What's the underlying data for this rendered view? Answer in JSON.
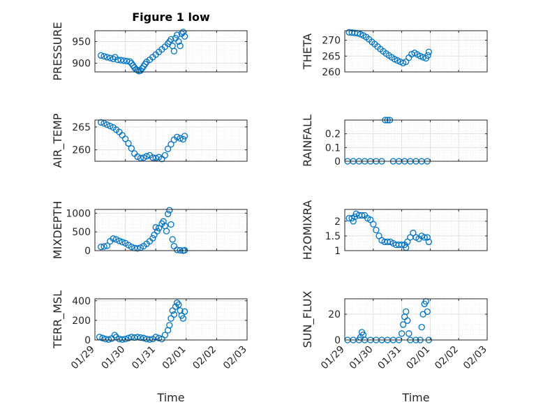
{
  "figure": {
    "title": "Figure 1 low",
    "marker_color": "#0072bd",
    "axis_color": "#262626",
    "grid_color": "#dfdfdf"
  },
  "chart_data": [
    {
      "type": "scatter",
      "id": "pressure",
      "ylabel": "PRESSURE",
      "xlabel": "",
      "xlim": [
        "01/29",
        "02/03"
      ],
      "ylim": [
        880,
        975
      ],
      "yticks": [
        900,
        950
      ],
      "xtick_labels_visible": false,
      "points": [
        [
          0.2,
          918
        ],
        [
          0.3,
          916
        ],
        [
          0.4,
          914
        ],
        [
          0.5,
          912
        ],
        [
          0.6,
          910
        ],
        [
          0.66,
          914
        ],
        [
          0.75,
          908
        ],
        [
          0.85,
          907
        ],
        [
          0.95,
          906
        ],
        [
          1.05,
          905
        ],
        [
          1.15,
          904
        ],
        [
          1.2,
          900
        ],
        [
          1.25,
          895
        ],
        [
          1.3,
          890
        ],
        [
          1.35,
          886
        ],
        [
          1.4,
          884
        ],
        [
          1.45,
          882
        ],
        [
          1.5,
          883
        ],
        [
          1.55,
          888
        ],
        [
          1.6,
          893
        ],
        [
          1.65,
          898
        ],
        [
          1.7,
          903
        ],
        [
          1.8,
          908
        ],
        [
          1.9,
          914
        ],
        [
          2.0,
          920
        ],
        [
          2.1,
          926
        ],
        [
          2.2,
          932
        ],
        [
          2.3,
          938
        ],
        [
          2.4,
          945
        ],
        [
          2.45,
          950
        ],
        [
          2.5,
          955
        ],
        [
          2.55,
          940
        ],
        [
          2.6,
          928
        ],
        [
          2.65,
          958
        ],
        [
          2.7,
          965
        ],
        [
          2.75,
          950
        ],
        [
          2.8,
          940
        ],
        [
          2.85,
          968
        ],
        [
          2.9,
          972
        ],
        [
          2.95,
          962
        ]
      ]
    },
    {
      "type": "scatter",
      "id": "theta",
      "ylabel": "THETA",
      "xlabel": "",
      "xlim": [
        "01/29",
        "02/03"
      ],
      "ylim": [
        260,
        273
      ],
      "yticks": [
        260,
        265,
        270
      ],
      "xtick_labels_visible": false,
      "points": [
        [
          0.15,
          272.5
        ],
        [
          0.25,
          272.4
        ],
        [
          0.35,
          272.3
        ],
        [
          0.45,
          272.2
        ],
        [
          0.55,
          271.9
        ],
        [
          0.65,
          271.5
        ],
        [
          0.75,
          271.0
        ],
        [
          0.85,
          270.3
        ],
        [
          0.95,
          269.5
        ],
        [
          1.05,
          268.8
        ],
        [
          1.15,
          268.0
        ],
        [
          1.25,
          267.2
        ],
        [
          1.35,
          266.5
        ],
        [
          1.45,
          265.8
        ],
        [
          1.55,
          265.2
        ],
        [
          1.65,
          264.6
        ],
        [
          1.75,
          264.0
        ],
        [
          1.85,
          263.6
        ],
        [
          1.95,
          263.2
        ],
        [
          2.05,
          262.8
        ],
        [
          2.15,
          263.2
        ],
        [
          2.25,
          264.5
        ],
        [
          2.35,
          265.6
        ],
        [
          2.45,
          266.0
        ],
        [
          2.55,
          265.5
        ],
        [
          2.65,
          265.0
        ],
        [
          2.75,
          264.6
        ],
        [
          2.85,
          264.3
        ],
        [
          2.92,
          265.2
        ],
        [
          2.95,
          266.3
        ]
      ]
    },
    {
      "type": "scatter",
      "id": "air_temp",
      "ylabel": "AIR_TEMP",
      "xlabel": "",
      "xlim": [
        "01/29",
        "02/03"
      ],
      "ylim": [
        257.5,
        266.5
      ],
      "yticks": [
        260,
        265
      ],
      "xtick_labels_visible": false,
      "points": [
        [
          0.2,
          266.0
        ],
        [
          0.3,
          265.8
        ],
        [
          0.4,
          265.5
        ],
        [
          0.5,
          265.2
        ],
        [
          0.6,
          264.9
        ],
        [
          0.7,
          264.4
        ],
        [
          0.8,
          263.9
        ],
        [
          0.9,
          263.2
        ],
        [
          1.0,
          262.4
        ],
        [
          1.1,
          261.4
        ],
        [
          1.2,
          260.3
        ],
        [
          1.3,
          259.2
        ],
        [
          1.4,
          258.5
        ],
        [
          1.5,
          258.2
        ],
        [
          1.6,
          258.3
        ],
        [
          1.7,
          258.6
        ],
        [
          1.8,
          258.8
        ],
        [
          1.9,
          258.3
        ],
        [
          2.0,
          258.2
        ],
        [
          2.1,
          258.4
        ],
        [
          2.2,
          258.0
        ],
        [
          2.3,
          258.8
        ],
        [
          2.4,
          260.2
        ],
        [
          2.5,
          261.2
        ],
        [
          2.6,
          262.2
        ],
        [
          2.7,
          262.8
        ],
        [
          2.8,
          262.5
        ],
        [
          2.9,
          262.3
        ],
        [
          2.95,
          263.0
        ]
      ]
    },
    {
      "type": "scatter",
      "id": "rainfall",
      "ylabel": "RAINFALL",
      "xlabel": "",
      "xlim": [
        "01/29",
        "02/03"
      ],
      "ylim": [
        0,
        0.3
      ],
      "yticks": [
        0,
        0.1,
        0.2
      ],
      "xtick_labels_visible": false,
      "points": [
        [
          0.1,
          0
        ],
        [
          0.3,
          0
        ],
        [
          0.5,
          0
        ],
        [
          0.7,
          0
        ],
        [
          0.9,
          0
        ],
        [
          1.1,
          0
        ],
        [
          1.3,
          0
        ],
        [
          1.42,
          0.3
        ],
        [
          1.5,
          0.3
        ],
        [
          1.58,
          0.3
        ],
        [
          1.7,
          0
        ],
        [
          1.9,
          0
        ],
        [
          2.1,
          0
        ],
        [
          2.3,
          0
        ],
        [
          2.5,
          0
        ],
        [
          2.7,
          0
        ],
        [
          2.9,
          0
        ]
      ]
    },
    {
      "type": "scatter",
      "id": "mixdepth",
      "ylabel": "MIXDEPTH",
      "xlabel": "",
      "xlim": [
        "01/29",
        "02/03"
      ],
      "ylim": [
        0,
        1100
      ],
      "yticks": [
        0,
        500,
        1000
      ],
      "xtick_labels_visible": false,
      "points": [
        [
          0.2,
          100
        ],
        [
          0.3,
          110
        ],
        [
          0.4,
          130
        ],
        [
          0.5,
          250
        ],
        [
          0.6,
          320
        ],
        [
          0.7,
          300
        ],
        [
          0.8,
          260
        ],
        [
          0.9,
          230
        ],
        [
          1.0,
          200
        ],
        [
          1.1,
          150
        ],
        [
          1.2,
          100
        ],
        [
          1.3,
          70
        ],
        [
          1.4,
          60
        ],
        [
          1.5,
          80
        ],
        [
          1.6,
          120
        ],
        [
          1.7,
          180
        ],
        [
          1.8,
          250
        ],
        [
          1.9,
          330
        ],
        [
          1.95,
          420
        ],
        [
          2.0,
          620
        ],
        [
          2.05,
          520
        ],
        [
          2.1,
          600
        ],
        [
          2.2,
          720
        ],
        [
          2.25,
          780
        ],
        [
          2.3,
          660
        ],
        [
          2.35,
          520
        ],
        [
          2.4,
          980
        ],
        [
          2.45,
          1080
        ],
        [
          2.5,
          700
        ],
        [
          2.55,
          300
        ],
        [
          2.6,
          120
        ],
        [
          2.7,
          20
        ],
        [
          2.8,
          10
        ],
        [
          2.9,
          0
        ],
        [
          2.95,
          10
        ]
      ]
    },
    {
      "type": "scatter",
      "id": "h2omixra",
      "ylabel": "H2OMIXRA",
      "xlabel": "",
      "xlim": [
        "01/29",
        "02/03"
      ],
      "ylim": [
        1,
        2.4
      ],
      "yticks": [
        1,
        1.5,
        2
      ],
      "xtick_labels_visible": false,
      "points": [
        [
          0.15,
          2.1
        ],
        [
          0.25,
          2.1
        ],
        [
          0.3,
          2.0
        ],
        [
          0.35,
          2.15
        ],
        [
          0.4,
          2.25
        ],
        [
          0.5,
          2.2
        ],
        [
          0.6,
          2.2
        ],
        [
          0.7,
          2.2
        ],
        [
          0.8,
          2.1
        ],
        [
          0.9,
          2.05
        ],
        [
          1.0,
          1.9
        ],
        [
          1.1,
          1.7
        ],
        [
          1.2,
          1.5
        ],
        [
          1.3,
          1.35
        ],
        [
          1.4,
          1.3
        ],
        [
          1.5,
          1.3
        ],
        [
          1.6,
          1.3
        ],
        [
          1.7,
          1.25
        ],
        [
          1.8,
          1.2
        ],
        [
          1.9,
          1.2
        ],
        [
          2.0,
          1.2
        ],
        [
          2.1,
          1.2
        ],
        [
          2.15,
          1.1
        ],
        [
          2.2,
          1.3
        ],
        [
          2.3,
          1.45
        ],
        [
          2.4,
          1.6
        ],
        [
          2.5,
          1.45
        ],
        [
          2.6,
          1.4
        ],
        [
          2.7,
          1.5
        ],
        [
          2.8,
          1.45
        ],
        [
          2.9,
          1.45
        ],
        [
          2.95,
          1.3
        ]
      ]
    },
    {
      "type": "scatter",
      "id": "terr_msl",
      "ylabel": "TERR_MSL",
      "xlabel": "Time",
      "xlim": [
        "01/29",
        "02/03"
      ],
      "ylim": [
        0,
        420
      ],
      "yticks": [
        0,
        200,
        400
      ],
      "xtick_labels": [
        "01/29",
        "01/30",
        "01/31",
        "02/01",
        "02/02",
        "02/03"
      ],
      "points": [
        [
          0.15,
          30
        ],
        [
          0.25,
          20
        ],
        [
          0.35,
          10
        ],
        [
          0.45,
          5
        ],
        [
          0.55,
          15
        ],
        [
          0.65,
          50
        ],
        [
          0.7,
          30
        ],
        [
          0.8,
          10
        ],
        [
          0.9,
          5
        ],
        [
          1.0,
          10
        ],
        [
          1.1,
          20
        ],
        [
          1.2,
          30
        ],
        [
          1.3,
          25
        ],
        [
          1.4,
          30
        ],
        [
          1.5,
          25
        ],
        [
          1.6,
          20
        ],
        [
          1.7,
          10
        ],
        [
          1.8,
          5
        ],
        [
          1.9,
          10
        ],
        [
          2.0,
          30
        ],
        [
          2.1,
          20
        ],
        [
          2.2,
          10
        ],
        [
          2.3,
          50
        ],
        [
          2.4,
          100
        ],
        [
          2.45,
          150
        ],
        [
          2.5,
          220
        ],
        [
          2.55,
          300
        ],
        [
          2.6,
          260
        ],
        [
          2.65,
          340
        ],
        [
          2.7,
          380
        ],
        [
          2.75,
          360
        ],
        [
          2.8,
          300
        ],
        [
          2.85,
          250
        ],
        [
          2.9,
          220
        ],
        [
          2.95,
          290
        ]
      ]
    },
    {
      "type": "scatter",
      "id": "sun_flux",
      "ylabel": "SUN_FLUX",
      "xlabel": "Time",
      "xlim": [
        "01/29",
        "02/03"
      ],
      "ylim": [
        0,
        32
      ],
      "yticks": [
        0,
        20
      ],
      "xtick_labels": [
        "01/29",
        "01/30",
        "01/31",
        "02/01",
        "02/02",
        "02/03"
      ],
      "points": [
        [
          0.1,
          0
        ],
        [
          0.3,
          0
        ],
        [
          0.5,
          0
        ],
        [
          0.55,
          2
        ],
        [
          0.6,
          6
        ],
        [
          0.65,
          4
        ],
        [
          0.7,
          0
        ],
        [
          0.9,
          0
        ],
        [
          1.1,
          0
        ],
        [
          1.3,
          0
        ],
        [
          1.5,
          0
        ],
        [
          1.7,
          0
        ],
        [
          1.9,
          0
        ],
        [
          2.0,
          5
        ],
        [
          2.05,
          12
        ],
        [
          2.1,
          18
        ],
        [
          2.15,
          22
        ],
        [
          2.2,
          15
        ],
        [
          2.25,
          5
        ],
        [
          2.3,
          0
        ],
        [
          2.5,
          0
        ],
        [
          2.65,
          0
        ],
        [
          2.7,
          10
        ],
        [
          2.75,
          20
        ],
        [
          2.8,
          28
        ],
        [
          2.85,
          30
        ],
        [
          2.9,
          22
        ],
        [
          2.95,
          0
        ]
      ]
    }
  ]
}
